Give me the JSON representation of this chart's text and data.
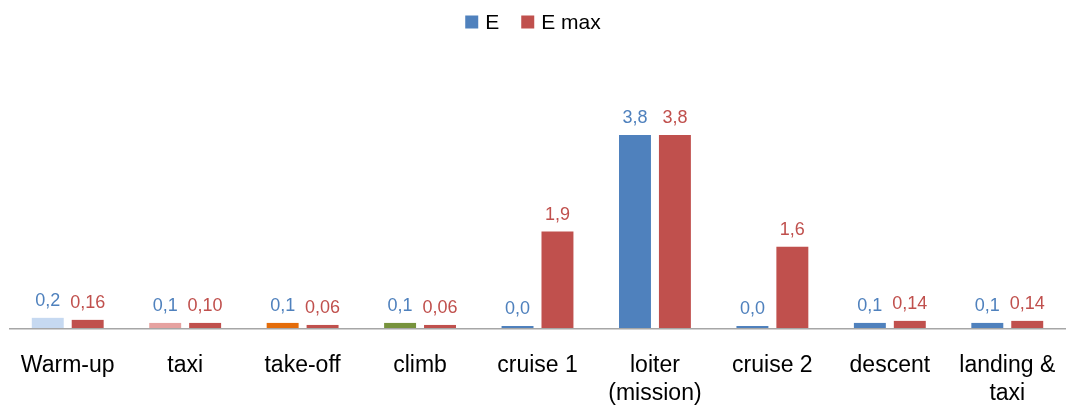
{
  "chart_data": {
    "type": "bar",
    "legend": "top",
    "categories": [
      "Warm-up",
      "taxi",
      "take-off",
      "climb",
      "cruise 1",
      "loiter (mission)",
      "cruise 2",
      "descent",
      "landing & taxi"
    ],
    "series": [
      {
        "name": "E",
        "color": "#4f81bd",
        "colors": [
          "#c6d9f1",
          "#e6a2a0",
          "#e46c0a",
          "#77933c",
          "#4f81bd",
          "#4f81bd",
          "#4f81bd",
          "#4f81bd",
          "#4f81bd"
        ],
        "values": [
          0.2,
          0.1,
          0.1,
          0.1,
          0.0,
          3.8,
          0.0,
          0.1,
          0.1
        ],
        "value_labels": [
          "0,2",
          "0,1",
          "0,1",
          "0,1",
          "0,0",
          "3,8",
          "0,0",
          "0,1",
          "0,1"
        ]
      },
      {
        "name": "E max",
        "color": "#c0504d",
        "values": [
          0.16,
          0.1,
          0.06,
          0.06,
          1.9,
          3.8,
          1.6,
          0.14,
          0.14
        ],
        "value_labels": [
          "0,16",
          "0,10",
          "0,06",
          "0,06",
          "1,9",
          "3,8",
          "1,6",
          "0,14",
          "0,14"
        ]
      }
    ]
  }
}
